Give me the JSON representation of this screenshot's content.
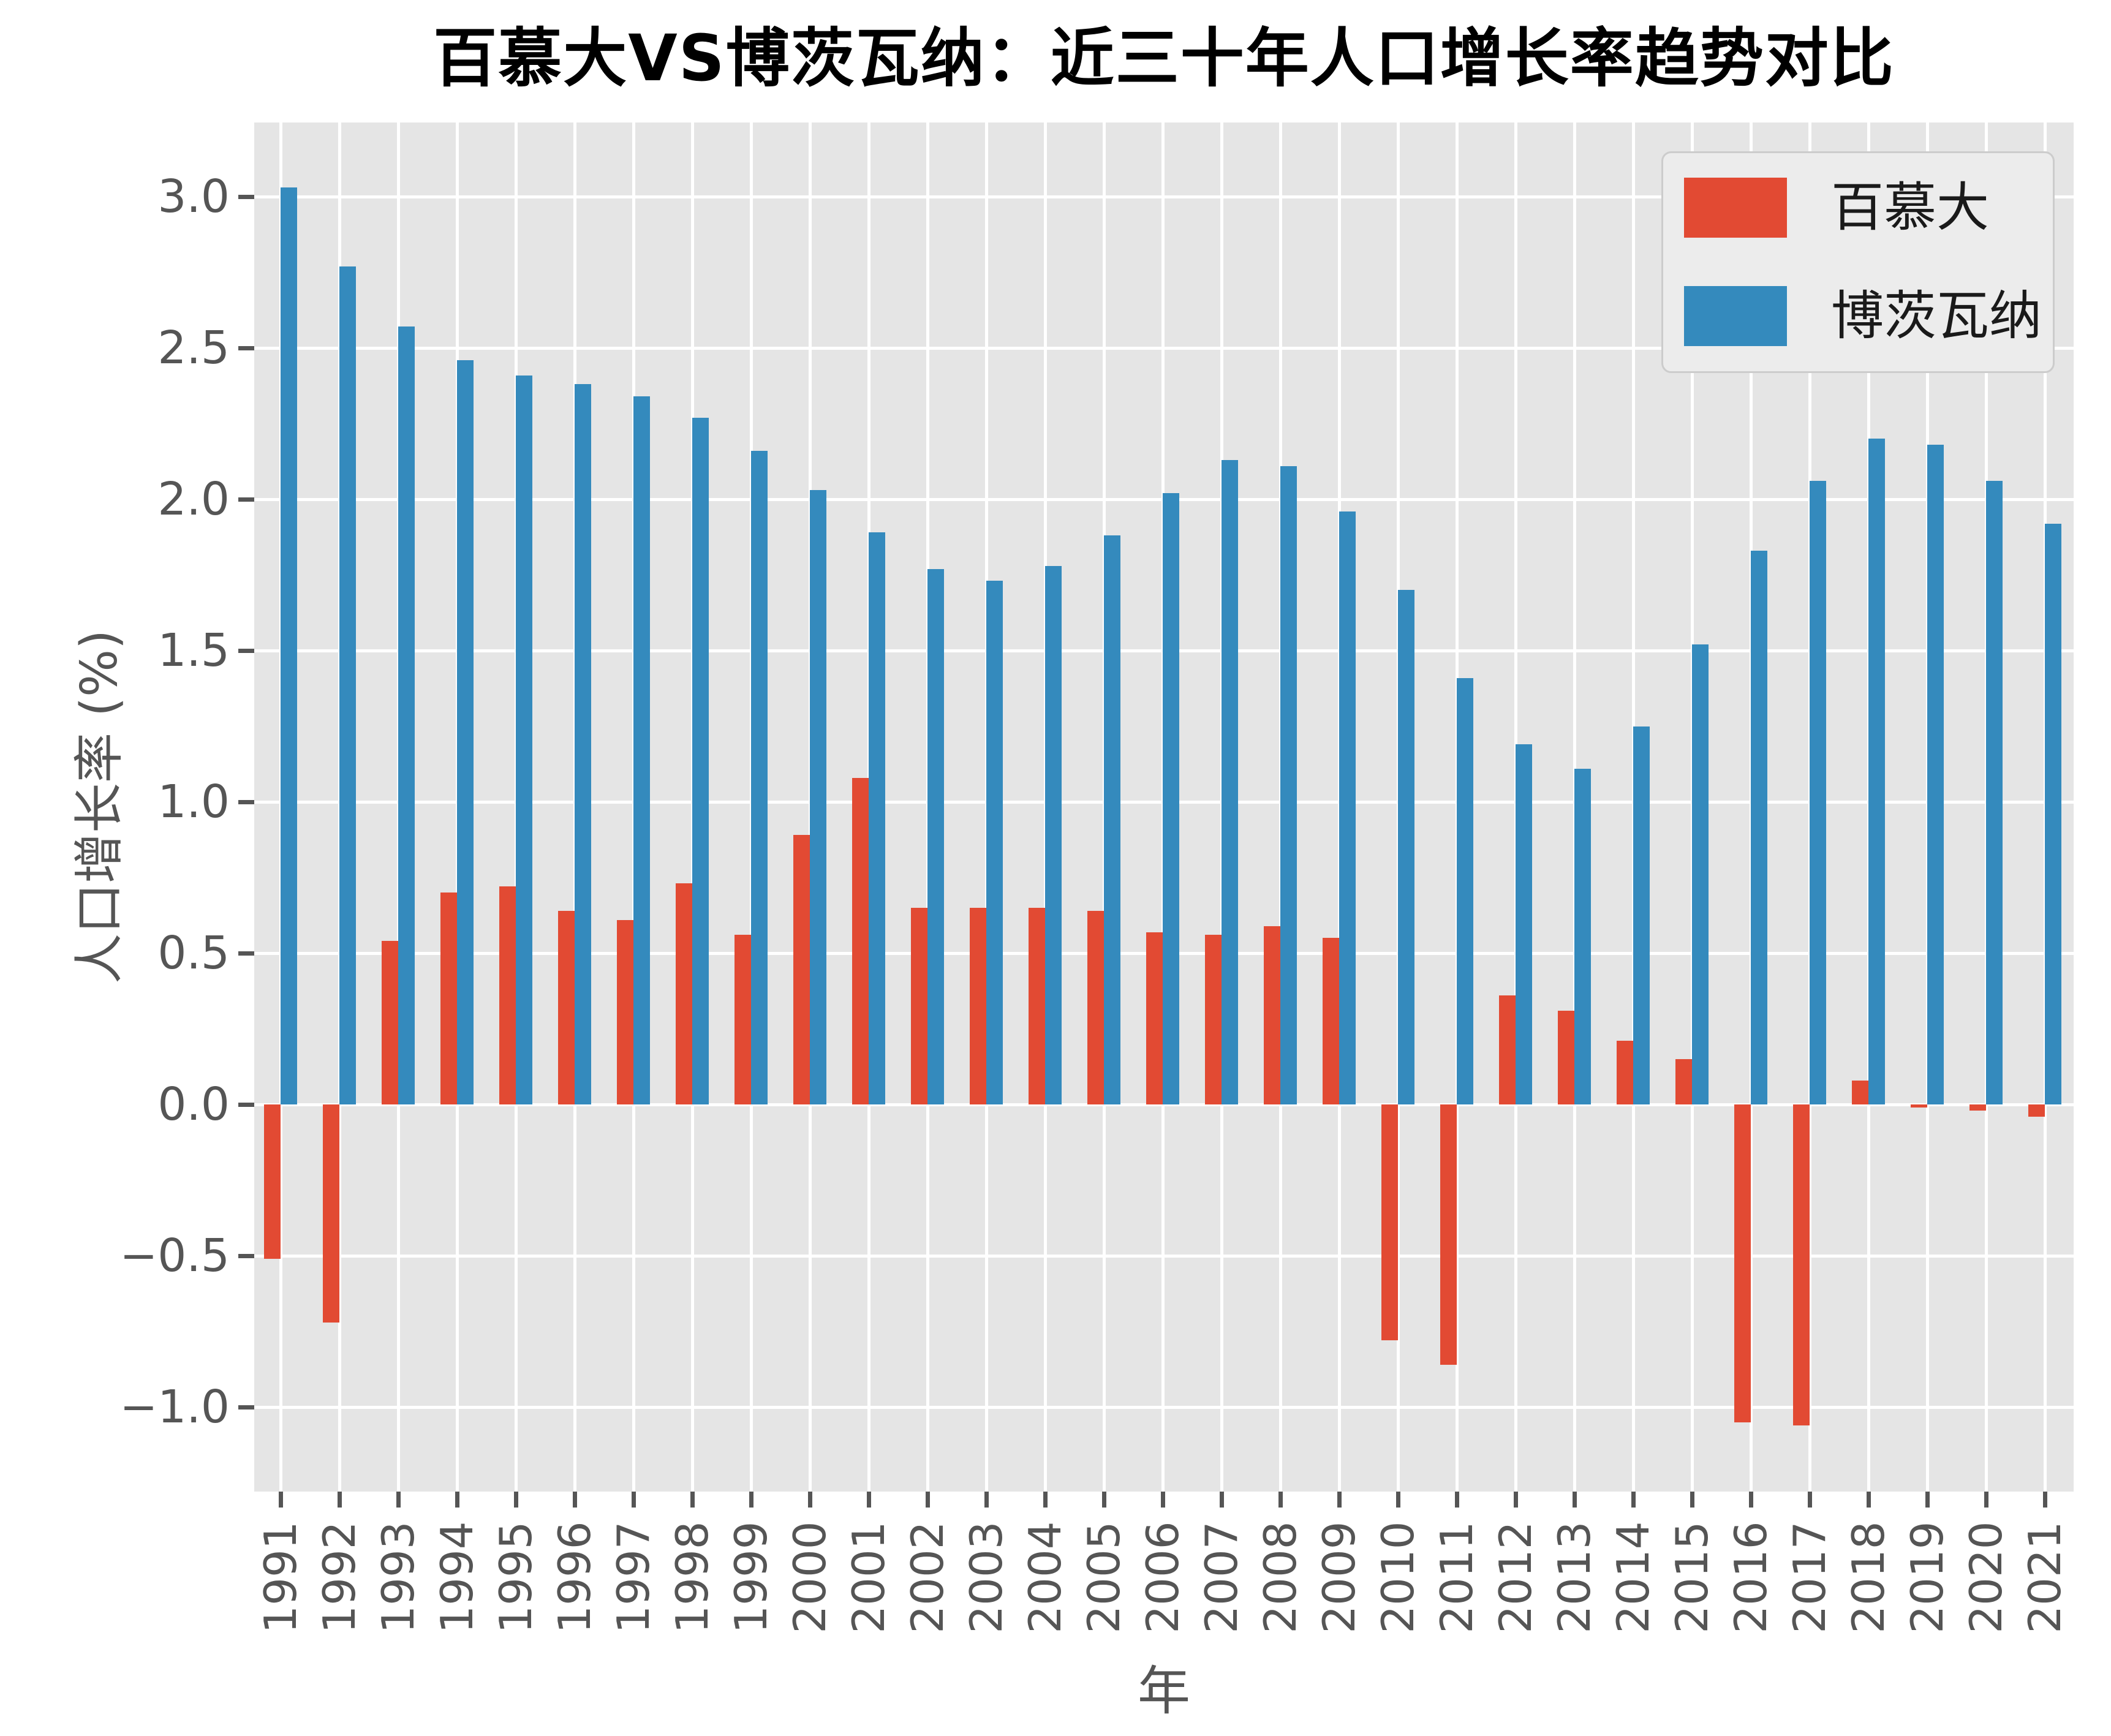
{
  "chart_data": {
    "type": "bar",
    "title": "百慕大VS博茨瓦纳：近三十年人口增长率趋势对比",
    "xlabel": "年",
    "ylabel": "人口增长率 (%)",
    "categories": [
      "1991",
      "1992",
      "1993",
      "1994",
      "1995",
      "1996",
      "1997",
      "1998",
      "1999",
      "2000",
      "2001",
      "2002",
      "2003",
      "2004",
      "2005",
      "2006",
      "2007",
      "2008",
      "2009",
      "2010",
      "2011",
      "2012",
      "2013",
      "2014",
      "2015",
      "2016",
      "2017",
      "2018",
      "2019",
      "2020",
      "2021"
    ],
    "series": [
      {
        "name": "百慕大",
        "color": "#E24A33",
        "values": [
          -0.51,
          -0.72,
          0.54,
          0.7,
          0.72,
          0.64,
          0.61,
          0.73,
          0.56,
          0.89,
          1.08,
          0.65,
          0.65,
          0.65,
          0.64,
          0.57,
          0.56,
          0.59,
          0.55,
          -0.78,
          -0.86,
          0.36,
          0.31,
          0.21,
          0.15,
          -1.05,
          -1.06,
          0.08,
          -0.01,
          -0.02,
          -0.04
        ]
      },
      {
        "name": "博茨瓦纳",
        "color": "#348ABD",
        "values": [
          3.03,
          2.77,
          2.57,
          2.46,
          2.41,
          2.38,
          2.34,
          2.27,
          2.16,
          2.03,
          1.89,
          1.77,
          1.73,
          1.78,
          1.88,
          2.02,
          2.13,
          2.11,
          1.96,
          1.7,
          1.41,
          1.19,
          1.11,
          1.25,
          1.52,
          1.83,
          2.06,
          2.2,
          2.18,
          2.06,
          1.92
        ]
      }
    ],
    "ylim": [
      -1.279,
      3.245
    ],
    "yticks": [
      3.0,
      2.5,
      2.0,
      1.5,
      1.0,
      0.5,
      0.0,
      -0.5,
      -1.0
    ],
    "ytick_labels": [
      "3.0",
      "2.5",
      "2.0",
      "1.5",
      "1.0",
      "0.5",
      "0.0",
      "−0.5",
      "−1.0"
    ],
    "grid": "on",
    "grid_color": "#FFFFFF",
    "plot_background": "#E5E5E5",
    "tick_color": "#555555",
    "legend_position": "upper right",
    "legend_entries": [
      "百慕大",
      "博茨瓦纳"
    ]
  }
}
